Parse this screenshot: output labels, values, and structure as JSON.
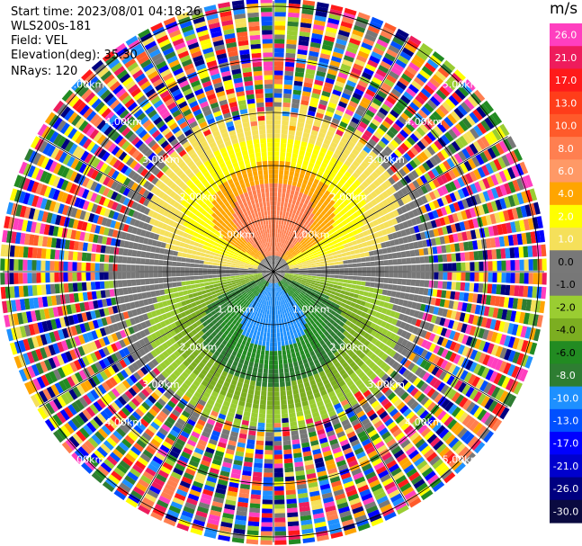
{
  "header": {
    "start_time": "Start time: 2023/08/01 04:18:26",
    "instrument": "WLS200s-181",
    "field": "Field: VEL",
    "elevation": "Elevation(deg): 35.30",
    "nrays": "NRays: 120"
  },
  "chart_data": {
    "type": "ppi-polar",
    "field": "VEL",
    "units": "m/s",
    "nrays": 120,
    "range_rings_km": [
      1.0,
      2.0,
      3.0,
      4.0,
      5.0
    ],
    "ring_labels": [
      "1.00km",
      "2.00km",
      "3.00km",
      "4.00km",
      "5.00km"
    ],
    "max_range_km": 5.1,
    "spoke_angles_deg": [
      0,
      30,
      60,
      90,
      120,
      150,
      180,
      210,
      240,
      270,
      300,
      330
    ],
    "structure": {
      "positive_velocity_sector": "north (upper half), max ~+8 m/s near 0.8 km",
      "negative_velocity_sector": "south (lower half), min ~-10 m/s near 0.7 km",
      "noise_beyond_km": 3.4
    },
    "colorbar": {
      "label": "m/s",
      "ticks": [
        "26.0",
        "21.0",
        "17.0",
        "13.0",
        "10.0",
        "8.0",
        "6.0",
        "4.0",
        "2.0",
        "1.0",
        "0.0",
        "-1.0",
        "-2.0",
        "-4.0",
        "-6.0",
        "-8.0",
        "-10.0",
        "-13.0",
        "-17.0",
        "-21.0",
        "-26.0",
        "-30.0"
      ],
      "colors": [
        "#ff3fbf",
        "#ee1c5c",
        "#ff1a1a",
        "#ff3d1a",
        "#ff5a2a",
        "#ff7f50",
        "#ff9966",
        "#ffa500",
        "#ffff00",
        "#f5e05a",
        "#787878",
        "#777777",
        "#9acd32",
        "#7cae21",
        "#228b22",
        "#2e7d32",
        "#1e90ff",
        "#0050ff",
        "#0000ff",
        "#0000cd",
        "#000080",
        "#0a0a40"
      ]
    }
  }
}
